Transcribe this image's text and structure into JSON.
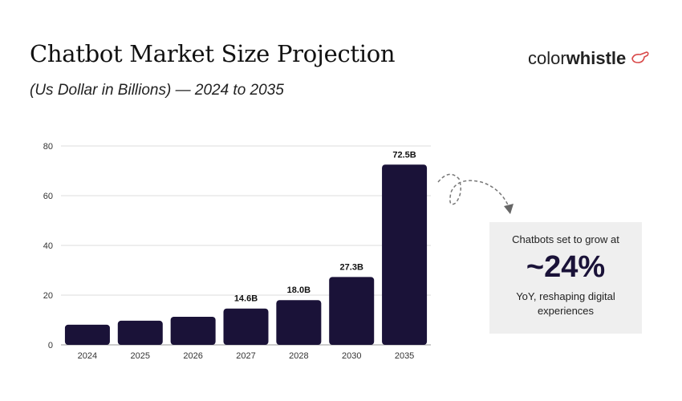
{
  "title": "Chatbot Market Size Projection",
  "subtitle": "(Us Dollar in Billions) — 2024 to 2035",
  "logo": {
    "part1": "color",
    "part2": "whistle",
    "icon": "whistle-icon",
    "icon_color": "#d94a4a"
  },
  "callout": {
    "line1": "Chatbots set to grow at",
    "value": "~24%",
    "line2": "YoY, reshaping digital experiences",
    "icon": "dashed-curved-arrow-icon"
  },
  "chart_data": {
    "type": "bar",
    "categories": [
      "2024",
      "2025",
      "2026",
      "2027",
      "2028",
      "2030",
      "2035"
    ],
    "values": [
      8.1,
      9.7,
      11.3,
      14.6,
      18.0,
      27.3,
      72.5
    ],
    "data_labels": [
      "",
      "",
      "",
      "14.6B",
      "18.0B",
      "27.3B",
      "72.5B"
    ],
    "ylim": [
      0,
      80
    ],
    "yticks": [
      0,
      20,
      40,
      60,
      80
    ],
    "grid": true,
    "bar_color": "#1a1238",
    "xlabel": "",
    "ylabel": ""
  }
}
